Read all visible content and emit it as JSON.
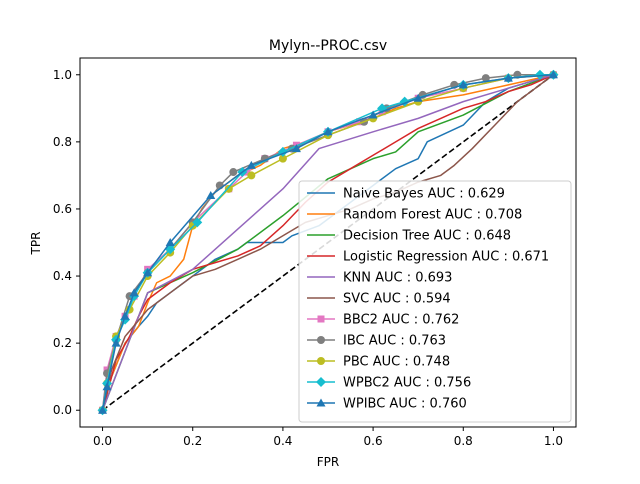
{
  "chart_data": {
    "type": "line",
    "title": "Mylyn--PROC.csv",
    "xlabel": "FPR",
    "ylabel": "TPR",
    "xlim": [
      -0.05,
      1.05
    ],
    "ylim": [
      -0.05,
      1.05
    ],
    "xticks": [
      "0.0",
      "0.2",
      "0.4",
      "0.6",
      "0.8",
      "1.0"
    ],
    "yticks": [
      "0.0",
      "0.2",
      "0.4",
      "0.6",
      "0.8",
      "1.0"
    ],
    "grid": false,
    "legend_position": "lower right",
    "diagonal": {
      "style": "dashed",
      "color": "#000000",
      "x": [
        0,
        1
      ],
      "y": [
        0,
        1
      ]
    },
    "series": [
      {
        "name": "Naive Bayes AUC : 0.629",
        "color": "#1f77b4",
        "marker": "none",
        "x": [
          0,
          0.02,
          0.05,
          0.08,
          0.1,
          0.12,
          0.15,
          0.18,
          0.2,
          0.25,
          0.3,
          0.32,
          0.4,
          0.42,
          0.48,
          0.55,
          0.6,
          0.65,
          0.7,
          0.72,
          0.8,
          0.85,
          0.9,
          1.0
        ],
        "y": [
          0,
          0.1,
          0.2,
          0.25,
          0.28,
          0.32,
          0.35,
          0.38,
          0.4,
          0.45,
          0.48,
          0.5,
          0.5,
          0.52,
          0.55,
          0.62,
          0.67,
          0.72,
          0.75,
          0.8,
          0.85,
          0.92,
          0.96,
          1.0
        ]
      },
      {
        "name": "Random Forest AUC : 0.708",
        "color": "#ff7f0e",
        "marker": "none",
        "x": [
          0,
          0.02,
          0.05,
          0.08,
          0.1,
          0.12,
          0.15,
          0.18,
          0.19,
          0.2,
          0.22,
          0.25,
          0.3,
          0.35,
          0.4,
          0.45,
          0.5,
          0.6,
          0.65,
          0.7,
          0.8,
          0.9,
          1.0
        ],
        "y": [
          0,
          0.1,
          0.2,
          0.25,
          0.32,
          0.38,
          0.4,
          0.45,
          0.5,
          0.55,
          0.6,
          0.65,
          0.7,
          0.73,
          0.78,
          0.8,
          0.83,
          0.87,
          0.9,
          0.92,
          0.94,
          0.97,
          1.0
        ]
      },
      {
        "name": "Decision Tree AUC : 0.648",
        "color": "#2ca02c",
        "marker": "none",
        "x": [
          0,
          0.1,
          0.15,
          0.2,
          0.3,
          0.4,
          0.5,
          0.6,
          0.65,
          0.7,
          0.8,
          0.9,
          1.0
        ],
        "y": [
          0,
          0.35,
          0.38,
          0.41,
          0.48,
          0.58,
          0.69,
          0.75,
          0.77,
          0.83,
          0.88,
          0.95,
          1.0
        ]
      },
      {
        "name": "Logistic Regression AUC : 0.671",
        "color": "#d62728",
        "marker": "none",
        "x": [
          0,
          0.03,
          0.06,
          0.08,
          0.1,
          0.15,
          0.2,
          0.25,
          0.3,
          0.35,
          0.4,
          0.45,
          0.5,
          0.55,
          0.6,
          0.65,
          0.7,
          0.75,
          0.8,
          0.85,
          0.9,
          0.95,
          1.0
        ],
        "y": [
          0,
          0.15,
          0.22,
          0.28,
          0.33,
          0.38,
          0.42,
          0.44,
          0.46,
          0.49,
          0.55,
          0.62,
          0.68,
          0.72,
          0.76,
          0.8,
          0.84,
          0.87,
          0.9,
          0.92,
          0.95,
          0.97,
          1.0
        ]
      },
      {
        "name": "KNN AUC : 0.693",
        "color": "#9467bd",
        "marker": "none",
        "x": [
          0,
          0.1,
          0.2,
          0.3,
          0.4,
          0.48,
          0.6,
          0.7,
          0.8,
          0.9,
          1.0
        ],
        "y": [
          0,
          0.35,
          0.42,
          0.54,
          0.66,
          0.78,
          0.83,
          0.87,
          0.92,
          0.96,
          1.0
        ]
      },
      {
        "name": "SVC AUC : 0.594",
        "color": "#8c564b",
        "marker": "none",
        "x": [
          0,
          0.02,
          0.05,
          0.1,
          0.15,
          0.2,
          0.25,
          0.3,
          0.35,
          0.4,
          0.45,
          0.5,
          0.55,
          0.6,
          0.65,
          0.7,
          0.75,
          0.78,
          0.82,
          0.87,
          0.92,
          0.96,
          1.0
        ],
        "y": [
          0,
          0.12,
          0.22,
          0.3,
          0.35,
          0.4,
          0.42,
          0.45,
          0.48,
          0.52,
          0.56,
          0.58,
          0.6,
          0.63,
          0.65,
          0.68,
          0.7,
          0.73,
          0.78,
          0.85,
          0.92,
          0.96,
          1.0
        ]
      },
      {
        "name": "BBC2 AUC : 0.762",
        "color": "#e377c2",
        "marker": "square",
        "x": [
          0,
          0.01,
          0.03,
          0.05,
          0.07,
          0.1,
          0.15,
          0.2,
          0.28,
          0.32,
          0.36,
          0.43,
          0.5,
          0.57,
          0.62,
          0.7,
          0.8,
          0.9,
          1.0
        ],
        "y": [
          0,
          0.12,
          0.22,
          0.28,
          0.34,
          0.42,
          0.48,
          0.56,
          0.66,
          0.71,
          0.75,
          0.79,
          0.83,
          0.86,
          0.89,
          0.93,
          0.96,
          0.99,
          1.0
        ]
      },
      {
        "name": "IBC AUC : 0.763",
        "color": "#7f7f7f",
        "marker": "circle",
        "x": [
          0,
          0.01,
          0.03,
          0.06,
          0.1,
          0.15,
          0.2,
          0.26,
          0.29,
          0.36,
          0.42,
          0.5,
          0.58,
          0.63,
          0.71,
          0.78,
          0.85,
          0.92,
          1.0
        ],
        "y": [
          0,
          0.11,
          0.21,
          0.34,
          0.41,
          0.48,
          0.56,
          0.67,
          0.71,
          0.75,
          0.78,
          0.82,
          0.86,
          0.9,
          0.94,
          0.97,
          0.99,
          1.0,
          1.0
        ]
      },
      {
        "name": "PBC AUC : 0.748",
        "color": "#bcbd22",
        "marker": "circle",
        "x": [
          0,
          0.01,
          0.03,
          0.06,
          0.1,
          0.15,
          0.2,
          0.28,
          0.33,
          0.4,
          0.5,
          0.6,
          0.7,
          0.8,
          0.9,
          1.0
        ],
        "y": [
          0,
          0.08,
          0.22,
          0.3,
          0.4,
          0.47,
          0.55,
          0.66,
          0.7,
          0.75,
          0.82,
          0.87,
          0.92,
          0.96,
          0.99,
          1.0
        ]
      },
      {
        "name": "WPBC2 AUC : 0.756",
        "color": "#17becf",
        "marker": "diamond",
        "x": [
          0,
          0.01,
          0.03,
          0.05,
          0.07,
          0.1,
          0.15,
          0.21,
          0.31,
          0.4,
          0.5,
          0.62,
          0.67,
          0.8,
          0.9,
          0.97,
          1.0
        ],
        "y": [
          0,
          0.08,
          0.21,
          0.27,
          0.34,
          0.41,
          0.48,
          0.56,
          0.71,
          0.77,
          0.83,
          0.9,
          0.92,
          0.97,
          0.99,
          1.0,
          1.0
        ]
      },
      {
        "name": "WPIBC AUC : 0.760",
        "color": "#1f77b4",
        "marker": "triangle",
        "x": [
          0,
          0.01,
          0.03,
          0.05,
          0.07,
          0.1,
          0.15,
          0.24,
          0.33,
          0.43,
          0.5,
          0.6,
          0.7,
          0.8,
          0.9,
          1.0
        ],
        "y": [
          0,
          0.07,
          0.2,
          0.28,
          0.35,
          0.41,
          0.5,
          0.64,
          0.73,
          0.78,
          0.83,
          0.88,
          0.93,
          0.97,
          0.99,
          1.0
        ]
      }
    ]
  }
}
